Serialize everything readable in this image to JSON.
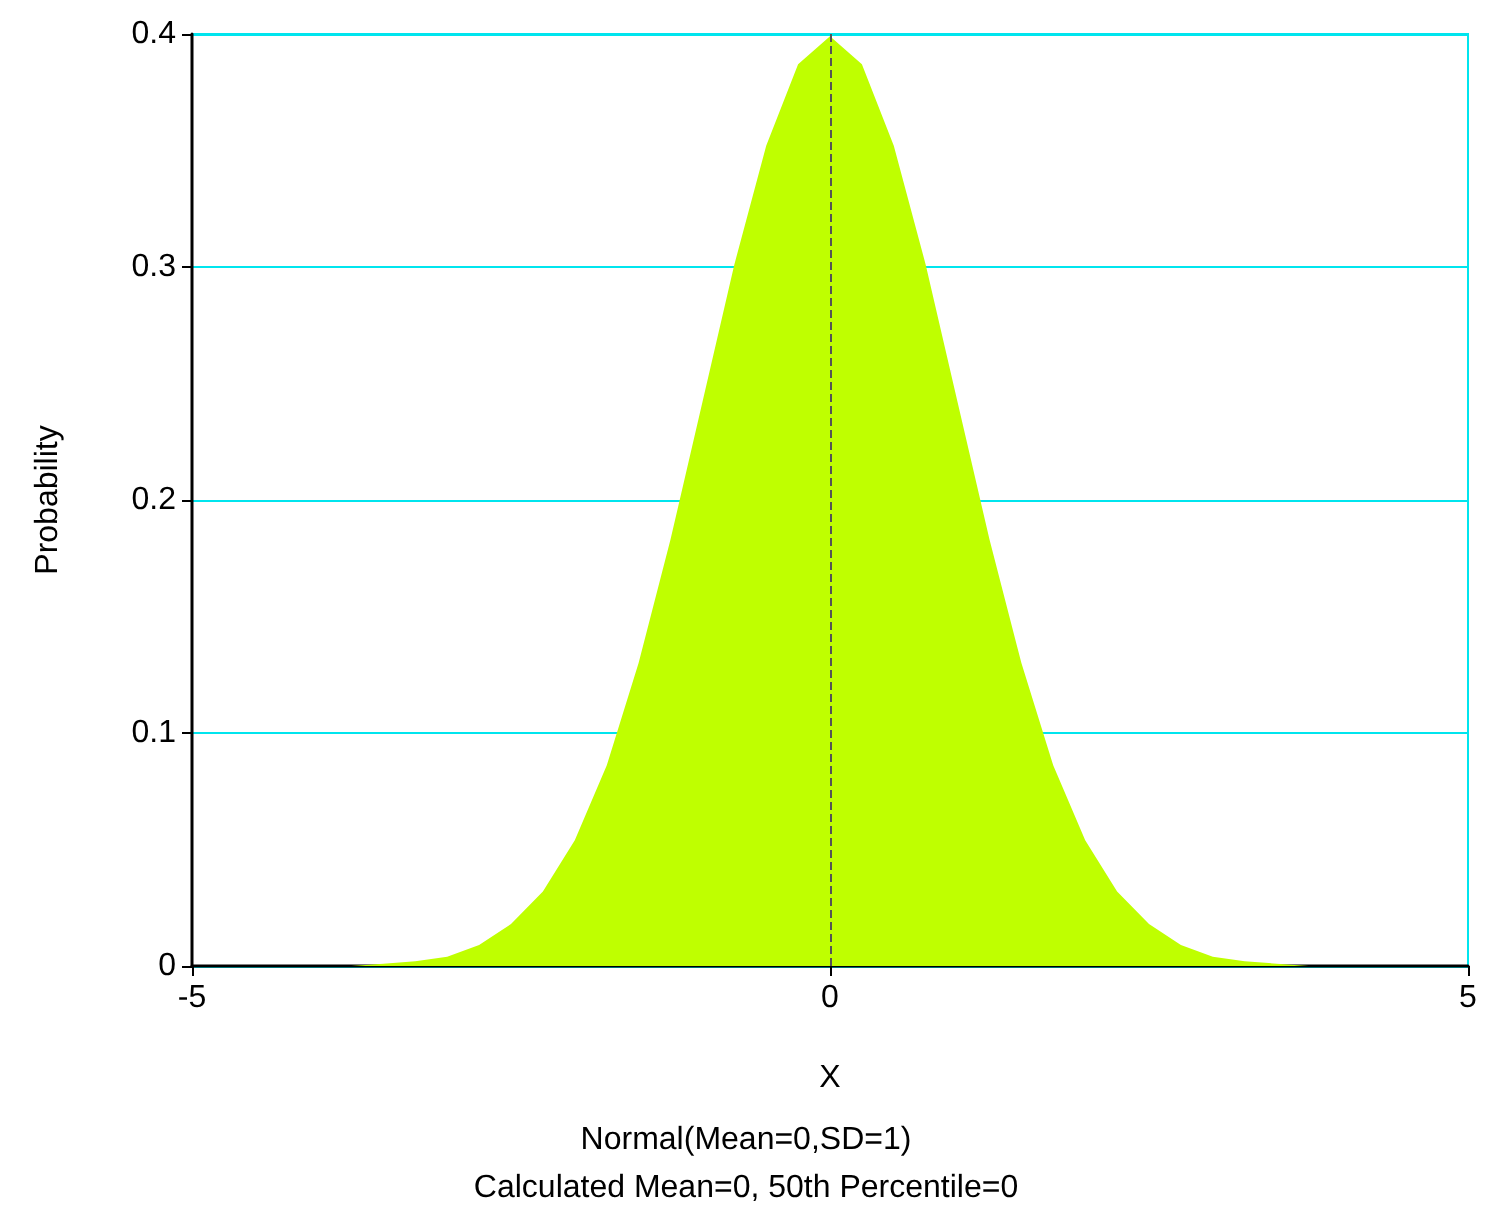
{
  "chart_data": {
    "type": "area",
    "xlabel": "X",
    "ylabel": "Probability",
    "annotations": [
      "Normal(Mean=0,SD=1)",
      "Calculated Mean=0, 50th Percentile=0"
    ],
    "x": [
      -5,
      -4.5,
      -4,
      -3.75,
      -3.5,
      -3.25,
      -3,
      -2.75,
      -2.5,
      -2.25,
      -2,
      -1.75,
      -1.5,
      -1.25,
      -1,
      -0.75,
      -0.5,
      -0.25,
      0,
      0.25,
      0.5,
      0.75,
      1,
      1.25,
      1.5,
      1.75,
      2,
      2.25,
      2.5,
      2.75,
      3,
      3.25,
      3.5,
      3.75,
      4,
      4.5,
      5
    ],
    "series": [
      {
        "color": "#bfff00",
        "values": [
          0,
          0,
          0,
          0,
          0.001,
          0.002,
          0.004,
          0.009,
          0.018,
          0.032,
          0.054,
          0.086,
          0.13,
          0.183,
          0.242,
          0.301,
          0.352,
          0.387,
          0.399,
          0.387,
          0.352,
          0.301,
          0.242,
          0.183,
          0.13,
          0.086,
          0.054,
          0.032,
          0.018,
          0.009,
          0.004,
          0.002,
          0.001,
          0,
          0,
          0,
          0
        ]
      }
    ],
    "xlim": [
      -5,
      5
    ],
    "xticks": [
      -5,
      0,
      5
    ],
    "ylim": [
      0,
      0.4
    ],
    "yticks": [
      0,
      0.1,
      0.2,
      0.3,
      0.4
    ],
    "grid": "y",
    "marker": "none",
    "ref_lines": [
      {
        "axis": "x",
        "value": 0,
        "color": "#555555",
        "line_style": "dashed"
      }
    ]
  }
}
